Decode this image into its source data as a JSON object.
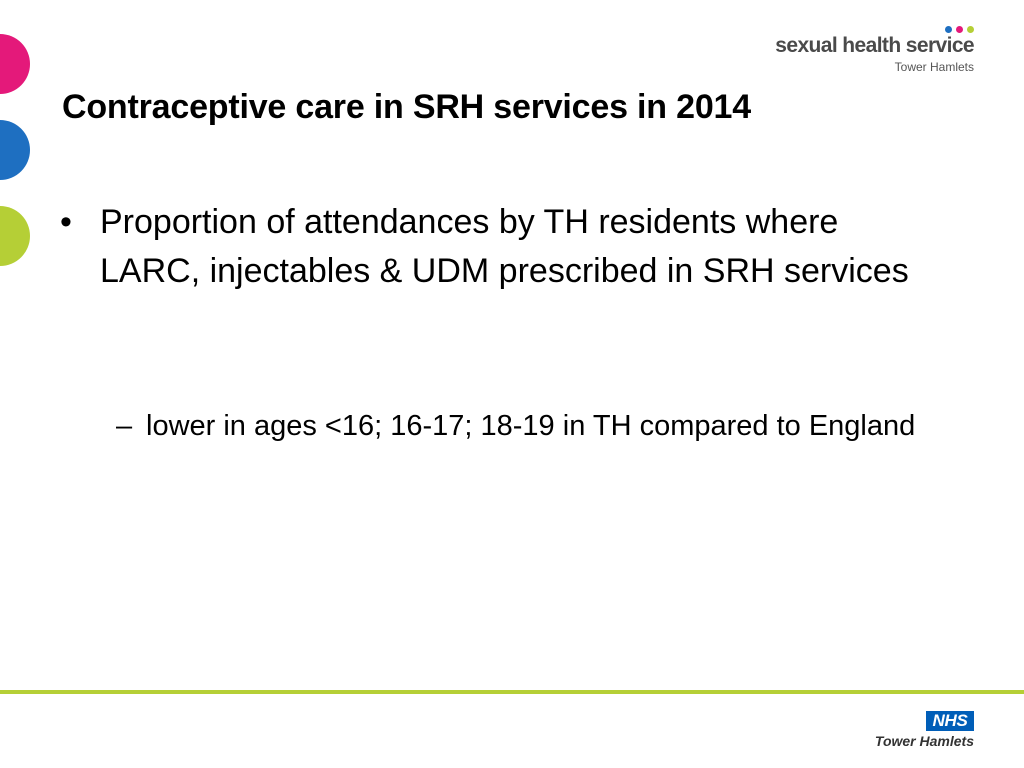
{
  "header": {
    "logo_text": "sexual health service",
    "logo_subtitle": "Tower Hamlets",
    "logo_dot_colors": [
      "#1e6fc1",
      "#e4197a",
      "#b5cf36"
    ]
  },
  "slide": {
    "title": "Contraceptive care in SRH services in 2014",
    "bullet_marker": "•",
    "bullet": "Proportion of attendances by TH residents where LARC, injectables & UDM prescribed in SRH services",
    "sub_bullet_marker": "–",
    "sub_bullet": "lower in ages <16; 16-17; 18-19 in TH compared to England"
  },
  "footer": {
    "nhs_badge": "NHS",
    "nhs_subtitle": "Tower Hamlets",
    "accent_color": "#b5cf36"
  },
  "decor": {
    "circle_colors": [
      "#e4197a",
      "#1e6fc1",
      "#b5cf36"
    ]
  }
}
